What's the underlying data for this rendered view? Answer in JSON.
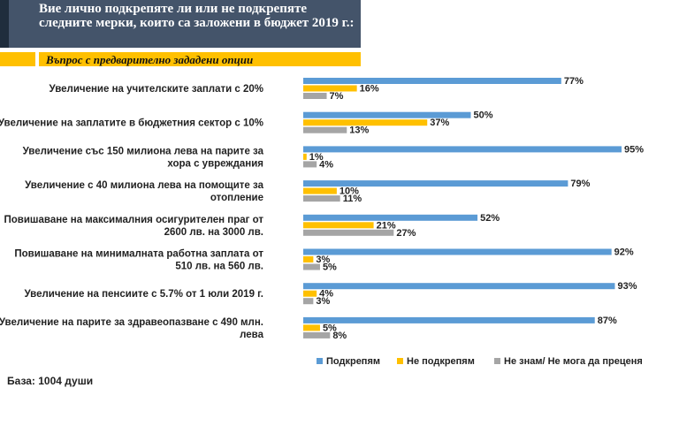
{
  "header": {
    "title": "Вие лично подкрепяте ли или не подкрепяте следните мерки, които са заложени в бюджет 2019 г.:",
    "subtitle": "Въпрос с предварително зададени опции"
  },
  "footer": {
    "base": "База: 1004 души"
  },
  "chart_data": {
    "type": "bar",
    "orientation": "horizontal",
    "title": "Вие лично подкрепяте ли или не подкрепяте следните мерки, които са заложени в бюджет 2019 г.:",
    "xlim": [
      0,
      100
    ],
    "grid": false,
    "legend_position": "bottom-right",
    "categories": [
      [
        "Увеличение на учителските заплати с 20%"
      ],
      [
        "Увеличение на заплатите в бюджетния сектор с 10%"
      ],
      [
        "Увеличение със 150 милиона лева на парите за",
        "хора с увреждания"
      ],
      [
        "Увеличение с 40 милиона лева на помощите за",
        "отопление"
      ],
      [
        "Повишаване на максималния осигурителен праг от",
        "2600 лв. на 3000 лв."
      ],
      [
        "Повишаване на минималната работна заплата от",
        "510 лв. на 560 лв."
      ],
      [
        "Увеличение на пенсиите с 5.7% от 1 юли 2019 г."
      ],
      [
        "Увеличение на парите за здравеопазване с 490 млн.",
        "лева"
      ]
    ],
    "series": [
      {
        "name": "Подкрепям",
        "color": "#5b9bd5",
        "values": [
          77,
          50,
          95,
          79,
          52,
          92,
          93,
          87
        ],
        "labels": [
          "77%",
          "50%",
          "95%",
          "79%",
          "52%",
          "92%",
          "93%",
          "87%"
        ]
      },
      {
        "name": "Не подкрепям",
        "color": "#ffc000",
        "values": [
          16,
          37,
          1,
          10,
          21,
          3,
          4,
          5
        ],
        "labels": [
          "16%",
          "37%",
          "1%",
          "10%",
          "21%",
          "3%",
          "4%",
          "5%"
        ]
      },
      {
        "name": "Не знам/ Не мога да преценя",
        "color": "#a5a5a5",
        "values": [
          7,
          13,
          4,
          11,
          27,
          5,
          3,
          8
        ],
        "labels": [
          "7%",
          "13%",
          "4%",
          "11%",
          "27%",
          "5%",
          "3%",
          "8%"
        ]
      }
    ]
  }
}
